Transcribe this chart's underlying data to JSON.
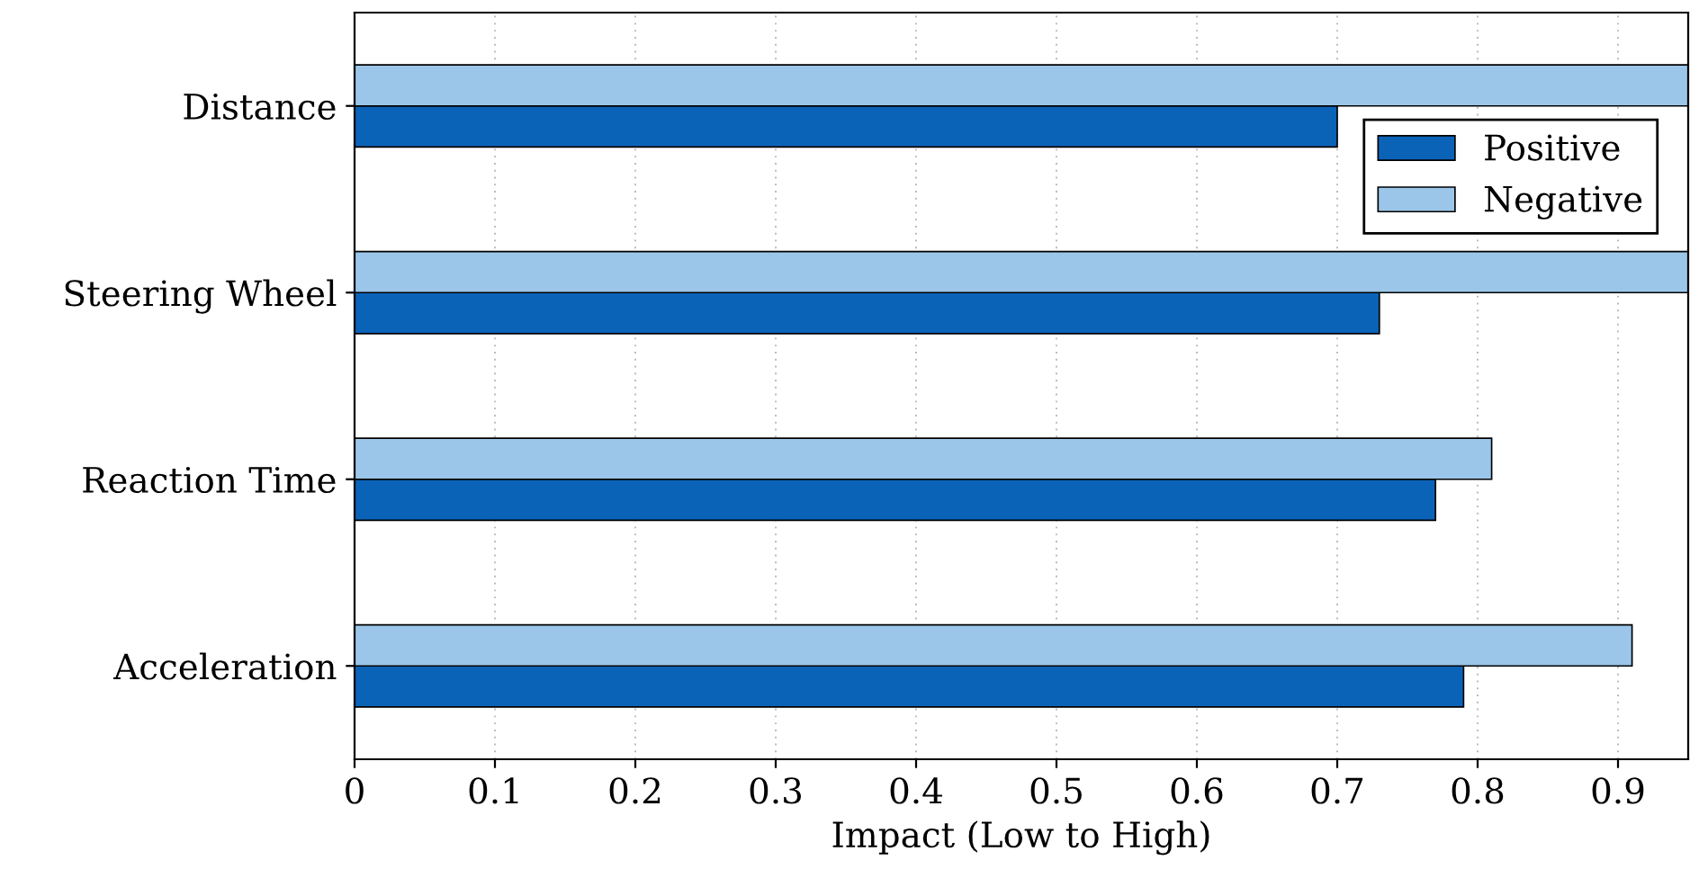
{
  "chart_data": {
    "type": "bar",
    "orientation": "horizontal",
    "xlabel": "Impact (Low to High)",
    "categories": [
      "Distance",
      "Steering Wheel",
      "Reaction Time",
      "Acceleration"
    ],
    "series": [
      {
        "name": "Positive",
        "color": "#0b63b8",
        "values": [
          0.7,
          0.73,
          0.77,
          0.79
        ]
      },
      {
        "name": "Negative",
        "color": "#9bc6e9",
        "values": [
          0.95,
          0.95,
          0.81,
          0.91
        ]
      }
    ],
    "xlim": [
      0,
      0.95
    ],
    "xticks": [
      0,
      0.1,
      0.2,
      0.3,
      0.4,
      0.5,
      0.6,
      0.7,
      0.8,
      0.9
    ],
    "grid": "x",
    "legend": "top right"
  }
}
